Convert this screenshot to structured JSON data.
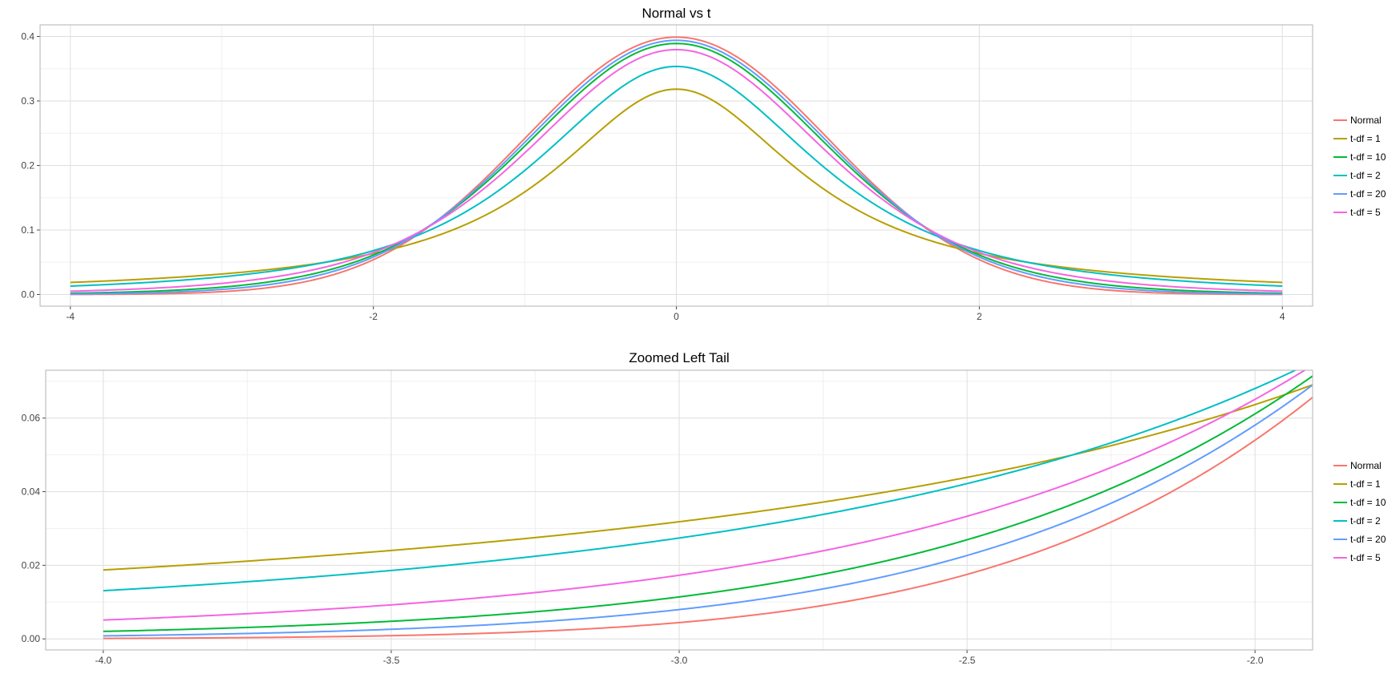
{
  "chart_data": [
    {
      "type": "line",
      "title": "Normal vs t",
      "xlabel": "",
      "ylabel": "",
      "xlim": [
        -4.2,
        4.2
      ],
      "ylim": [
        -0.018,
        0.418
      ],
      "x_ticks": [
        -4,
        -2,
        0,
        2,
        4
      ],
      "x_tick_labels": [
        "-4",
        "-2",
        "0",
        "2",
        "4"
      ],
      "y_ticks": [
        0.0,
        0.1,
        0.2,
        0.3,
        0.4
      ],
      "y_tick_labels": [
        "0.0",
        "0.1",
        "0.2",
        "0.3",
        "0.4"
      ],
      "x_range": [
        -4,
        4
      ],
      "grid": true,
      "legend": "right",
      "series": [
        {
          "name": "Normal",
          "dist": "normal",
          "color": "#F8766D"
        },
        {
          "name": "t-df = 1",
          "dist": "t",
          "df": 1,
          "color": "#B79F00"
        },
        {
          "name": "t-df = 10",
          "dist": "t",
          "df": 10,
          "color": "#00BA38"
        },
        {
          "name": "t-df = 2",
          "dist": "t",
          "df": 2,
          "color": "#00BFC4"
        },
        {
          "name": "t-df = 20",
          "dist": "t",
          "df": 20,
          "color": "#619CFF"
        },
        {
          "name": "t-df = 5",
          "dist": "t",
          "df": 5,
          "color": "#F564E3"
        }
      ]
    },
    {
      "type": "line",
      "title": "Zoomed Left Tail",
      "xlabel": "",
      "ylabel": "",
      "xlim": [
        -4.1,
        -1.9
      ],
      "ylim": [
        -0.003,
        0.073
      ],
      "x_ticks": [
        -4.0,
        -3.5,
        -3.0,
        -2.5,
        -2.0
      ],
      "x_tick_labels": [
        "-4.0",
        "-3.5",
        "-3.0",
        "-2.5",
        "-2.0"
      ],
      "y_ticks": [
        0.0,
        0.02,
        0.04,
        0.06
      ],
      "y_tick_labels": [
        "0.00",
        "0.02",
        "0.04",
        "0.06"
      ],
      "x_range": [
        -4,
        -1.9
      ],
      "grid": true,
      "legend": "right",
      "series": [
        {
          "name": "Normal",
          "dist": "normal",
          "color": "#F8766D"
        },
        {
          "name": "t-df = 1",
          "dist": "t",
          "df": 1,
          "color": "#B79F00"
        },
        {
          "name": "t-df = 10",
          "dist": "t",
          "df": 10,
          "color": "#00BA38"
        },
        {
          "name": "t-df = 2",
          "dist": "t",
          "df": 2,
          "color": "#00BFC4"
        },
        {
          "name": "t-df = 20",
          "dist": "t",
          "df": 20,
          "color": "#619CFF"
        },
        {
          "name": "t-df = 5",
          "dist": "t",
          "df": 5,
          "color": "#F564E3"
        }
      ]
    }
  ]
}
